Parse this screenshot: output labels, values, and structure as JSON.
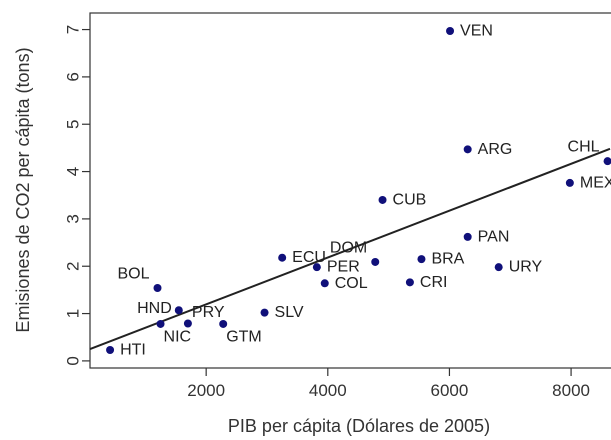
{
  "chart_data": {
    "type": "scatter",
    "xlabel": "PIB per cápita (Dólares de 2005)",
    "ylabel": "Emisiones de CO2 per cápita (tons)",
    "xlim": [
      90,
      8640
    ],
    "ylim": [
      -0.15,
      7.35
    ],
    "xticks": [
      2000,
      4000,
      6000,
      8000
    ],
    "yticks": [
      0,
      1,
      2,
      3,
      4,
      5,
      6,
      7
    ],
    "grid": false,
    "marker_color": "#10107a",
    "regression_line": {
      "x": [
        90,
        8640
      ],
      "y": [
        0.25,
        4.48
      ]
    },
    "points": [
      {
        "label": "VEN",
        "x": 6010,
        "y": 6.97,
        "label_side": "right"
      },
      {
        "label": "ARG",
        "x": 6300,
        "y": 4.47,
        "label_side": "right"
      },
      {
        "label": "CHL",
        "x": 8600,
        "y": 4.22,
        "label_side": "above-left"
      },
      {
        "label": "MEX",
        "x": 7980,
        "y": 3.76,
        "label_side": "right"
      },
      {
        "label": "CUB",
        "x": 4900,
        "y": 3.4,
        "label_side": "right"
      },
      {
        "label": "PAN",
        "x": 6300,
        "y": 2.62,
        "label_side": "right"
      },
      {
        "label": "ECU",
        "x": 3250,
        "y": 2.18,
        "label_side": "right"
      },
      {
        "label": "DOM",
        "x": 4780,
        "y": 2.09,
        "label_side": "above-left"
      },
      {
        "label": "BRA",
        "x": 5540,
        "y": 2.15,
        "label_side": "right"
      },
      {
        "label": "PER",
        "x": 3820,
        "y": 1.98,
        "label_side": "right"
      },
      {
        "label": "URY",
        "x": 6810,
        "y": 1.98,
        "label_side": "right"
      },
      {
        "label": "COL",
        "x": 3950,
        "y": 1.64,
        "label_side": "right"
      },
      {
        "label": "CRI",
        "x": 5350,
        "y": 1.66,
        "label_side": "right"
      },
      {
        "label": "BOL",
        "x": 1200,
        "y": 1.54,
        "label_side": "above-left"
      },
      {
        "label": "HND",
        "x": 1550,
        "y": 1.07,
        "label_side": "left"
      },
      {
        "label": "SLV",
        "x": 2960,
        "y": 1.02,
        "label_side": "right"
      },
      {
        "label": "PRY",
        "x": 1700,
        "y": 0.79,
        "label_side": "above-right"
      },
      {
        "label": "NIC",
        "x": 1250,
        "y": 0.78,
        "label_side": "below-right"
      },
      {
        "label": "GTM",
        "x": 2280,
        "y": 0.78,
        "label_side": "below-right"
      },
      {
        "label": "HTI",
        "x": 420,
        "y": 0.23,
        "label_side": "right"
      }
    ]
  }
}
